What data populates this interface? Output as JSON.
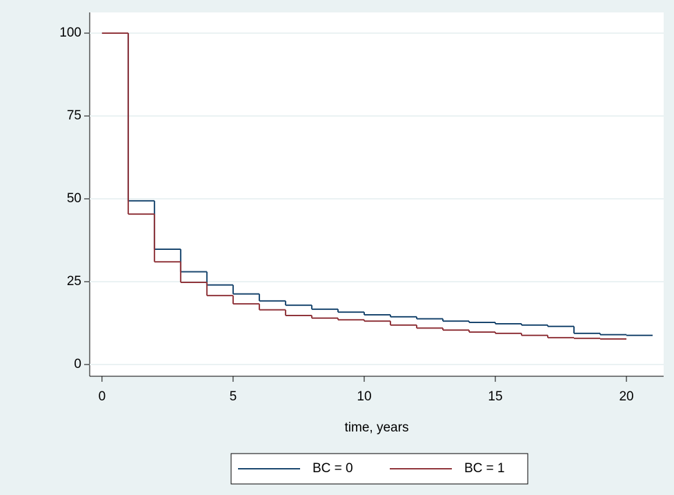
{
  "chart_data": {
    "type": "step",
    "x_label": "time, years",
    "xlim": [
      -0.47,
      21.42
    ],
    "ylim": [
      -3.54,
      106.25
    ],
    "xticks": [
      0,
      5,
      10,
      15,
      20
    ],
    "yticks": [
      0,
      25,
      50,
      75,
      100
    ],
    "grid": true,
    "legend": "bottom",
    "series": [
      {
        "name": "BC = 0",
        "color": "#1a476f",
        "x": [
          0,
          1,
          2,
          3,
          4,
          5,
          6,
          7,
          8,
          9,
          10,
          11,
          12,
          13,
          14,
          15,
          16,
          17,
          18,
          19,
          20,
          21
        ],
        "values": [
          100,
          49.4,
          34.8,
          28,
          24,
          21.3,
          19.2,
          17.9,
          16.7,
          15.8,
          15,
          14.4,
          13.8,
          13.1,
          12.7,
          12.3,
          11.9,
          11.5,
          9.4,
          9.0,
          8.8,
          8.8
        ]
      },
      {
        "name": "BC = 1",
        "color": "#90353b",
        "x": [
          0,
          1,
          2,
          3,
          4,
          5,
          6,
          7,
          8,
          9,
          10,
          11,
          12,
          13,
          14,
          15,
          16,
          17,
          18,
          19,
          20
        ],
        "values": [
          100,
          45.4,
          31,
          24.8,
          20.8,
          18.3,
          16.5,
          14.8,
          14,
          13.5,
          13.1,
          11.9,
          11,
          10.4,
          9.8,
          9.4,
          8.8,
          8.1,
          7.9,
          7.7,
          7.7
        ]
      }
    ]
  }
}
